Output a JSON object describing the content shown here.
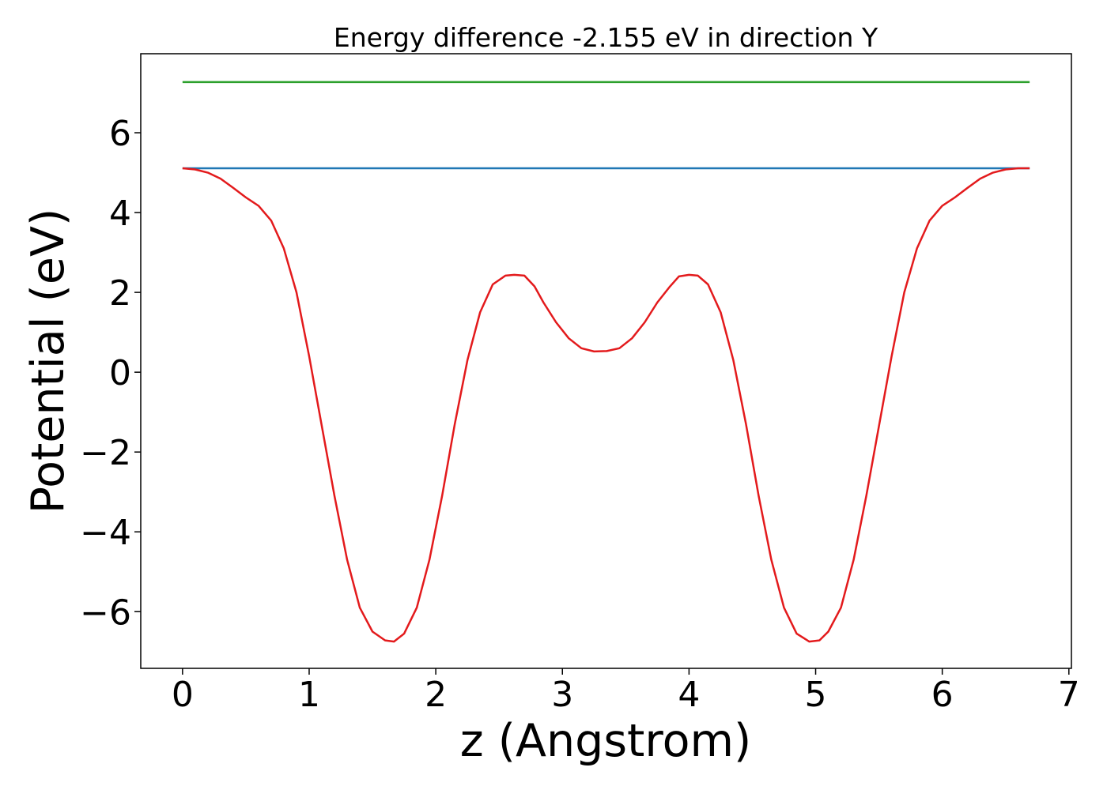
{
  "chart_data": {
    "type": "line",
    "title": "Energy difference -2.155 eV in direction Y",
    "xlabel": "z (Angstrom)",
    "ylabel": "Potential (eV)",
    "xlim": [
      -0.33,
      7.02
    ],
    "ylim": [
      -7.42,
      7.98
    ],
    "xticks": [
      0,
      1,
      2,
      3,
      4,
      5,
      6,
      7
    ],
    "xtick_labels": [
      "0",
      "1",
      "2",
      "3",
      "4",
      "5",
      "6",
      "7"
    ],
    "yticks": [
      -6,
      -4,
      -2,
      0,
      2,
      4,
      6
    ],
    "ytick_labels": [
      "−6",
      "−4",
      "−2",
      "0",
      "2",
      "4",
      "6"
    ],
    "grid": false,
    "series": [
      {
        "color": "#2ca02c",
        "x": [
          0,
          6.69
        ],
        "y": [
          7.27,
          7.27
        ]
      },
      {
        "color": "#1f77b4",
        "x": [
          0,
          6.69
        ],
        "y": [
          5.11,
          5.11
        ]
      },
      {
        "color": "#e31a1c",
        "x": [
          0,
          0.1,
          0.2,
          0.3,
          0.4,
          0.5,
          0.6,
          0.7,
          0.8,
          0.9,
          1.0,
          1.1,
          1.2,
          1.3,
          1.4,
          1.5,
          1.6,
          1.67,
          1.75,
          1.85,
          1.95,
          2.05,
          2.15,
          2.25,
          2.35,
          2.45,
          2.55,
          2.62,
          2.7,
          2.78,
          2.85,
          2.95,
          3.05,
          3.15,
          3.25,
          3.35,
          3.45,
          3.55,
          3.65,
          3.75,
          3.85,
          3.92,
          4.0,
          4.07,
          4.15,
          4.25,
          4.35,
          4.45,
          4.55,
          4.65,
          4.75,
          4.85,
          4.95,
          5.03,
          5.1,
          5.2,
          5.3,
          5.4,
          5.5,
          5.6,
          5.7,
          5.8,
          5.9,
          6.0,
          6.1,
          6.2,
          6.3,
          6.4,
          6.5,
          6.6,
          6.69
        ],
        "y": [
          5.11,
          5.08,
          5.0,
          4.85,
          4.62,
          4.38,
          4.17,
          3.8,
          3.1,
          2.0,
          0.4,
          -1.35,
          -3.1,
          -4.7,
          -5.9,
          -6.5,
          -6.72,
          -6.75,
          -6.55,
          -5.9,
          -4.7,
          -3.1,
          -1.3,
          0.3,
          1.5,
          2.2,
          2.42,
          2.44,
          2.42,
          2.15,
          1.75,
          1.25,
          0.85,
          0.6,
          0.52,
          0.53,
          0.6,
          0.85,
          1.25,
          1.75,
          2.15,
          2.4,
          2.44,
          2.42,
          2.2,
          1.5,
          0.3,
          -1.3,
          -3.1,
          -4.7,
          -5.9,
          -6.55,
          -6.75,
          -6.72,
          -6.5,
          -5.9,
          -4.7,
          -3.1,
          -1.35,
          0.4,
          2.0,
          3.1,
          3.8,
          4.17,
          4.38,
          4.62,
          4.85,
          5.0,
          5.08,
          5.11,
          5.11
        ]
      }
    ]
  }
}
